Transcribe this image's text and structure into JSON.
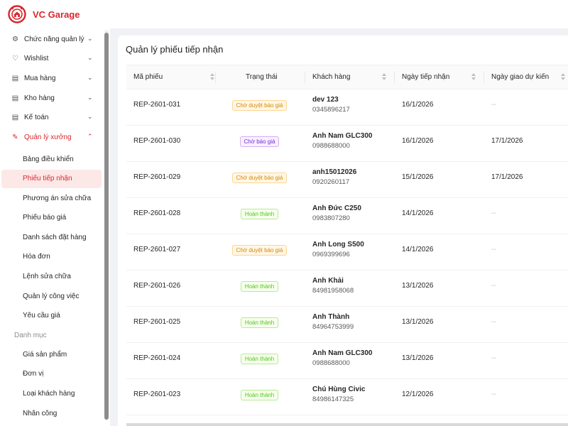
{
  "brand": {
    "name": "VC Garage"
  },
  "sidebar": {
    "groups": [
      {
        "label": "Chức năng quản lý",
        "icon": "gear-icon",
        "glyph": "⚙"
      },
      {
        "label": "Wishlist",
        "icon": "heart-icon",
        "glyph": "♡"
      },
      {
        "label": "Mua hàng",
        "icon": "cart-icon",
        "glyph": "▤"
      },
      {
        "label": "Kho hàng",
        "icon": "warehouse-icon",
        "glyph": "▤"
      },
      {
        "label": "Kế toán",
        "icon": "ledger-icon",
        "glyph": "▤"
      },
      {
        "label": "Quản lý xưởng",
        "icon": "wrench-icon",
        "glyph": "✎"
      }
    ],
    "workshop_items": [
      "Bảng điều khiển",
      "Phiếu tiếp nhận",
      "Phương án sửa chữa",
      "Phiếu báo giá",
      "Danh sách đặt hàng",
      "Hóa đơn",
      "Lệnh sửa chữa",
      "Quản lý công việc",
      "Yêu cầu giá"
    ],
    "catalog_title": "Danh mục",
    "catalog_items": [
      "Giá sản phẩm",
      "Đơn vị",
      "Loại khách hàng",
      "Nhân công"
    ],
    "selected_item": "Phiếu tiếp nhận"
  },
  "main": {
    "title": "Quản lý phiếu tiếp nhận",
    "columns": [
      "Mã phiếu",
      "Trạng thái",
      "Khách hàng",
      "Ngày tiếp nhận",
      "Ngày giao dự kiến"
    ],
    "rows": [
      {
        "code": "REP-2601-031",
        "status": "Chờ duyệt báo giá",
        "status_type": "pending",
        "customer": "dev 123",
        "phone": "0345896217",
        "received": "16/1/2026",
        "delivery": "--"
      },
      {
        "code": "REP-2601-030",
        "status": "Chờ báo giá",
        "status_type": "quote",
        "customer": "Anh Nam GLC300",
        "phone": "0988688000",
        "received": "16/1/2026",
        "delivery": "17/1/2026"
      },
      {
        "code": "REP-2601-029",
        "status": "Chờ duyệt báo giá",
        "status_type": "pending",
        "customer": "anh15012026",
        "phone": "0920260117",
        "received": "15/1/2026",
        "delivery": "17/1/2026"
      },
      {
        "code": "REP-2601-028",
        "status": "Hoàn thành",
        "status_type": "done",
        "customer": "Anh Đức C250",
        "phone": "0983807280",
        "received": "14/1/2026",
        "delivery": "--"
      },
      {
        "code": "REP-2601-027",
        "status": "Chờ duyệt báo giá",
        "status_type": "pending",
        "customer": "Anh Long S500",
        "phone": "0969399696",
        "received": "14/1/2026",
        "delivery": "--"
      },
      {
        "code": "REP-2601-026",
        "status": "Hoàn thành",
        "status_type": "done",
        "customer": "Anh Khải",
        "phone": "84981958068",
        "received": "13/1/2026",
        "delivery": "--"
      },
      {
        "code": "REP-2601-025",
        "status": "Hoàn thành",
        "status_type": "done",
        "customer": "Anh Thành",
        "phone": "84964753999",
        "received": "13/1/2026",
        "delivery": "--"
      },
      {
        "code": "REP-2601-024",
        "status": "Hoàn thành",
        "status_type": "done",
        "customer": "Anh Nam GLC300",
        "phone": "0988688000",
        "received": "13/1/2026",
        "delivery": "--"
      },
      {
        "code": "REP-2601-023",
        "status": "Hoàn thành",
        "status_type": "done",
        "customer": "Chú Hùng Civic",
        "phone": "84986147325",
        "received": "12/1/2026",
        "delivery": "--"
      }
    ]
  },
  "colors": {
    "brand": "#d9272e",
    "pending_bg": "#fff7e6",
    "pending_border": "#ffd591",
    "pending_text": "#d48806",
    "quote_bg": "#f9f0ff",
    "quote_border": "#d3adf7",
    "quote_text": "#722ed1",
    "done_bg": "#f6ffed",
    "done_border": "#b7eb8f",
    "done_text": "#52c41a"
  }
}
